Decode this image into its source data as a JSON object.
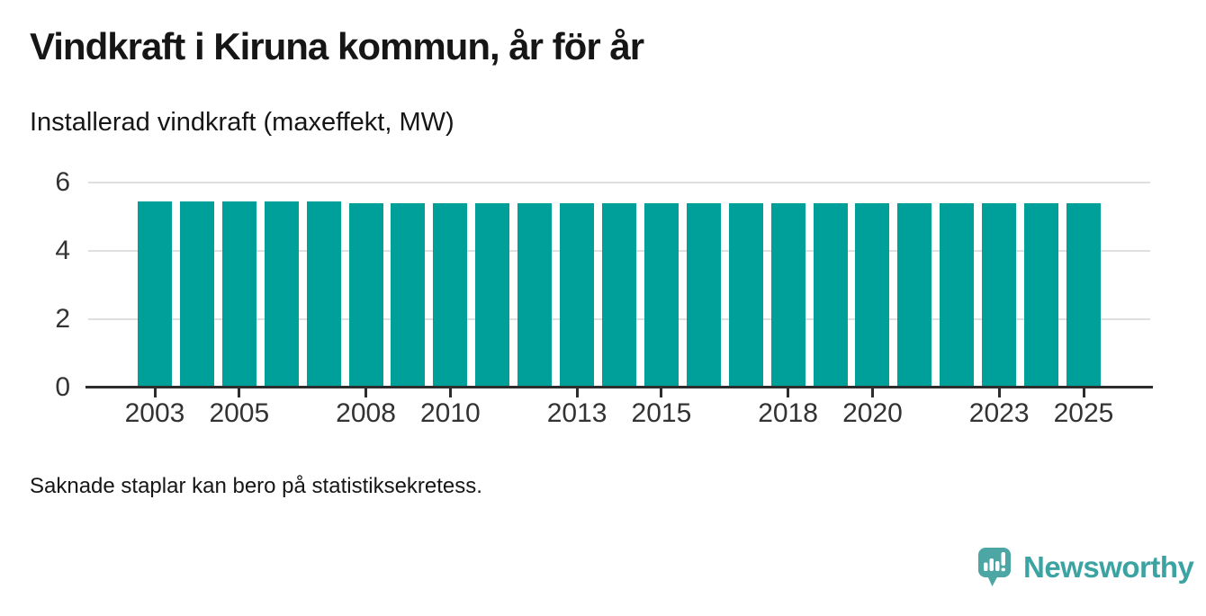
{
  "header": {
    "title": "Vindkraft i Kiruna kommun, år för år",
    "subtitle": "Installerad vindkraft (maxeffekt, MW)"
  },
  "footer": {
    "note": "Saknade staplar kan bero på statistiksekretess.",
    "brand": "Newsworthy",
    "logo_icon": "bar-chart-speech-bubble-icon"
  },
  "colors": {
    "bar": "#00a09a",
    "axis": "#2d2d2d",
    "grid": "#dfdfdf",
    "tick_text": "#333333",
    "text_dark": "#161616",
    "brand_teal": "#3ba3a2",
    "logo_bg": "#4ba6a4"
  },
  "chart_data": {
    "type": "bar",
    "title": "Vindkraft i Kiruna kommun, år för år",
    "subtitle": "Installerad vindkraft (maxeffekt, MW)",
    "x": [
      2003,
      2004,
      2005,
      2006,
      2007,
      2008,
      2009,
      2010,
      2011,
      2012,
      2013,
      2014,
      2015,
      2016,
      2017,
      2018,
      2019,
      2020,
      2021,
      2022,
      2023,
      2024,
      2025
    ],
    "values": [
      5.45,
      5.45,
      5.45,
      5.45,
      5.45,
      5.4,
      5.4,
      5.4,
      5.4,
      5.4,
      5.4,
      5.4,
      5.4,
      5.4,
      5.4,
      5.4,
      5.4,
      5.4,
      5.4,
      5.4,
      5.4,
      5.4,
      5.4
    ],
    "xticks": [
      2003,
      2005,
      2008,
      2010,
      2013,
      2015,
      2018,
      2020,
      2023,
      2025
    ],
    "yticks": [
      0,
      2,
      4,
      6
    ],
    "ylim": [
      0,
      6
    ],
    "xlabel": "",
    "ylabel": "MW",
    "grid": "horizontal",
    "legend": "none",
    "note": "Saknade staplar kan bero på statistiksekretess."
  }
}
